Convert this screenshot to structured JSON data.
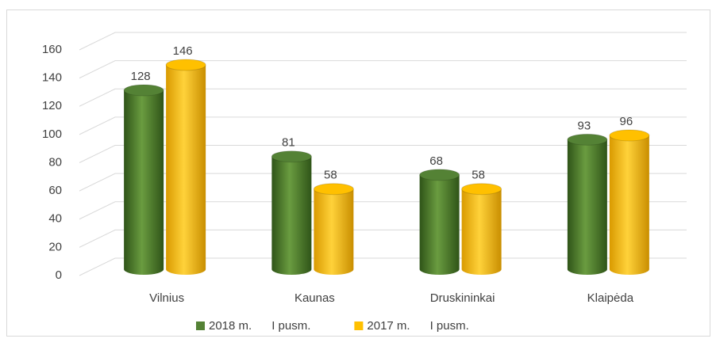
{
  "chart_data": {
    "type": "bar",
    "categories": [
      "Vilnius",
      "Kaunas",
      "Druskininkai",
      "Klaipėda"
    ],
    "series": [
      {
        "name": "2018 m.      I pusm.",
        "color": "#548235",
        "values": [
          128,
          81,
          68,
          93
        ]
      },
      {
        "name": "2017 m.      I pusm.",
        "color": "#ffc000",
        "values": [
          146,
          58,
          58,
          96
        ]
      }
    ],
    "ylim": [
      0,
      160
    ],
    "yticks": [
      0,
      20,
      40,
      60,
      80,
      100,
      120,
      140,
      160
    ],
    "grid": true,
    "legend": "bottom"
  }
}
